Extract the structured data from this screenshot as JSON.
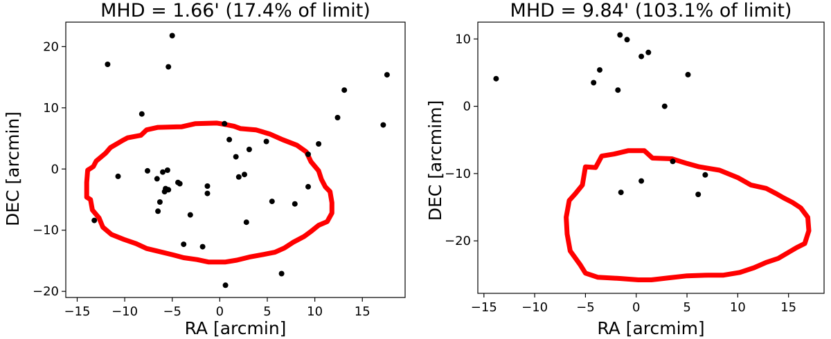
{
  "chart_data": [
    {
      "type": "scatter",
      "title": "MHD = 1.66' (17.4% of limit)",
      "xlabel": "RA [arcmin]",
      "ylabel": "DEC [arcmin]",
      "xlim": [
        -16.2,
        19.5
      ],
      "ylim": [
        -21.0,
        24.0
      ],
      "xticks": [
        -15,
        -10,
        -5,
        0,
        5,
        10,
        15
      ],
      "yticks": [
        -20,
        -10,
        0,
        10,
        20
      ],
      "grid": false,
      "point_color": "#000000",
      "contour_color": "#ff0000",
      "points": [
        [
          -5.0,
          21.8
        ],
        [
          -11.8,
          17.1
        ],
        [
          -5.4,
          16.7
        ],
        [
          -8.2,
          9.0
        ],
        [
          17.6,
          15.4
        ],
        [
          13.1,
          12.9
        ],
        [
          12.4,
          8.4
        ],
        [
          17.2,
          7.2
        ],
        [
          0.5,
          7.4
        ],
        [
          1.0,
          4.8
        ],
        [
          4.9,
          4.5
        ],
        [
          10.4,
          4.1
        ],
        [
          9.3,
          2.4
        ],
        [
          1.7,
          2.0
        ],
        [
          3.1,
          3.2
        ],
        [
          2.6,
          -0.9
        ],
        [
          2.0,
          -1.3
        ],
        [
          -10.7,
          -1.2
        ],
        [
          -7.6,
          -0.3
        ],
        [
          -6.0,
          -0.5
        ],
        [
          -5.5,
          -0.2
        ],
        [
          -6.6,
          -1.6
        ],
        [
          -4.4,
          -2.2
        ],
        [
          -4.2,
          -2.4
        ],
        [
          -5.7,
          -3.2
        ],
        [
          -5.4,
          -3.4
        ],
        [
          -5.8,
          -3.7
        ],
        [
          -1.3,
          -2.8
        ],
        [
          -1.3,
          -4.0
        ],
        [
          9.3,
          -2.9
        ],
        [
          -6.3,
          -5.4
        ],
        [
          -6.5,
          -6.9
        ],
        [
          -3.1,
          -7.5
        ],
        [
          5.5,
          -5.3
        ],
        [
          7.9,
          -5.7
        ],
        [
          -13.2,
          -8.4
        ],
        [
          2.8,
          -8.7
        ],
        [
          -3.8,
          -12.3
        ],
        [
          -1.8,
          -12.7
        ],
        [
          6.5,
          -17.1
        ],
        [
          0.6,
          -19.0
        ]
      ],
      "contour": [
        [
          -14.0,
          -2.2
        ],
        [
          -13.9,
          -0.2
        ],
        [
          -13.3,
          0.4
        ],
        [
          -13.0,
          1.3
        ],
        [
          -12.0,
          2.6
        ],
        [
          -11.5,
          3.5
        ],
        [
          -10.3,
          4.6
        ],
        [
          -9.7,
          5.1
        ],
        [
          -8.3,
          5.5
        ],
        [
          -7.7,
          6.4
        ],
        [
          -6.5,
          6.8
        ],
        [
          -4.0,
          6.9
        ],
        [
          -2.6,
          7.4
        ],
        [
          -0.3,
          7.5
        ],
        [
          0.5,
          7.3
        ],
        [
          1.5,
          7.0
        ],
        [
          2.2,
          6.6
        ],
        [
          3.8,
          6.4
        ],
        [
          5.3,
          5.7
        ],
        [
          6.6,
          4.8
        ],
        [
          8.1,
          3.9
        ],
        [
          9.1,
          2.8
        ],
        [
          9.6,
          1.2
        ],
        [
          10.4,
          -0.3
        ],
        [
          10.7,
          -1.7
        ],
        [
          11.1,
          -2.9
        ],
        [
          11.6,
          -3.7
        ],
        [
          11.8,
          -5.5
        ],
        [
          11.8,
          -7.2
        ],
        [
          11.3,
          -8.6
        ],
        [
          10.4,
          -9.2
        ],
        [
          9.6,
          -10.2
        ],
        [
          8.9,
          -11.0
        ],
        [
          7.7,
          -12.0
        ],
        [
          6.8,
          -12.9
        ],
        [
          5.8,
          -13.6
        ],
        [
          4.5,
          -14.0
        ],
        [
          3.1,
          -14.4
        ],
        [
          1.8,
          -14.9
        ],
        [
          0.6,
          -15.2
        ],
        [
          -1.2,
          -15.2
        ],
        [
          -2.4,
          -14.8
        ],
        [
          -3.8,
          -14.5
        ],
        [
          -5.0,
          -14.0
        ],
        [
          -6.6,
          -13.4
        ],
        [
          -7.7,
          -13.0
        ],
        [
          -8.8,
          -12.2
        ],
        [
          -10.1,
          -11.5
        ],
        [
          -11.4,
          -10.7
        ],
        [
          -12.3,
          -9.5
        ],
        [
          -12.7,
          -8.0
        ],
        [
          -13.4,
          -6.7
        ],
        [
          -13.6,
          -5.0
        ],
        [
          -14.0,
          -4.6
        ],
        [
          -14.0,
          -2.2
        ]
      ]
    },
    {
      "type": "scatter",
      "title": "MHD = 9.84' (103.1% of limit)",
      "xlabel": "RA [arcmim]",
      "ylabel": "DEC [arcmim]",
      "xlim": [
        -15.6,
        18.5
      ],
      "ylim": [
        -27.8,
        12.5
      ],
      "xticks": [
        -15,
        -10,
        -5,
        0,
        5,
        10,
        15
      ],
      "yticks": [
        -20,
        -10,
        0,
        10
      ],
      "grid": false,
      "point_color": "#000000",
      "contour_color": "#ff0000",
      "points": [
        [
          -1.6,
          10.6
        ],
        [
          -0.9,
          9.9
        ],
        [
          1.2,
          8.0
        ],
        [
          0.5,
          7.4
        ],
        [
          -3.6,
          5.4
        ],
        [
          5.1,
          4.7
        ],
        [
          -13.8,
          4.1
        ],
        [
          -4.2,
          3.5
        ],
        [
          -1.8,
          2.4
        ],
        [
          2.8,
          0.0
        ],
        [
          3.6,
          -8.2
        ],
        [
          6.8,
          -10.2
        ],
        [
          0.5,
          -11.1
        ],
        [
          -1.5,
          -12.8
        ],
        [
          6.1,
          -13.1
        ]
      ],
      "contour": [
        [
          -6.0,
          -13.0
        ],
        [
          -5.3,
          -11.7
        ],
        [
          -5.0,
          -9.0
        ],
        [
          -4.0,
          -9.1
        ],
        [
          -3.4,
          -7.4
        ],
        [
          -2.2,
          -7.1
        ],
        [
          -0.8,
          -6.6
        ],
        [
          0.8,
          -6.6
        ],
        [
          1.6,
          -7.7
        ],
        [
          3.5,
          -7.8
        ],
        [
          5.0,
          -8.5
        ],
        [
          6.2,
          -9.0
        ],
        [
          8.2,
          -9.5
        ],
        [
          10.0,
          -10.6
        ],
        [
          11.3,
          -11.7
        ],
        [
          12.8,
          -12.2
        ],
        [
          13.8,
          -13.0
        ],
        [
          14.5,
          -13.6
        ],
        [
          15.4,
          -14.3
        ],
        [
          16.2,
          -15.1
        ],
        [
          16.9,
          -16.5
        ],
        [
          17.0,
          -18.5
        ],
        [
          16.6,
          -20.4
        ],
        [
          15.8,
          -21.0
        ],
        [
          14.9,
          -21.8
        ],
        [
          14.0,
          -22.6
        ],
        [
          12.8,
          -23.2
        ],
        [
          11.6,
          -24.0
        ],
        [
          10.2,
          -24.7
        ],
        [
          8.6,
          -25.1
        ],
        [
          7.1,
          -25.1
        ],
        [
          5.0,
          -25.2
        ],
        [
          3.2,
          -25.5
        ],
        [
          1.5,
          -25.8
        ],
        [
          0.2,
          -25.8
        ],
        [
          -1.5,
          -25.6
        ],
        [
          -3.8,
          -25.4
        ],
        [
          -5.0,
          -24.8
        ],
        [
          -5.5,
          -23.6
        ],
        [
          -6.5,
          -21.5
        ],
        [
          -6.8,
          -19.0
        ],
        [
          -6.9,
          -16.5
        ],
        [
          -6.6,
          -14.0
        ],
        [
          -6.0,
          -13.0
        ]
      ]
    }
  ]
}
